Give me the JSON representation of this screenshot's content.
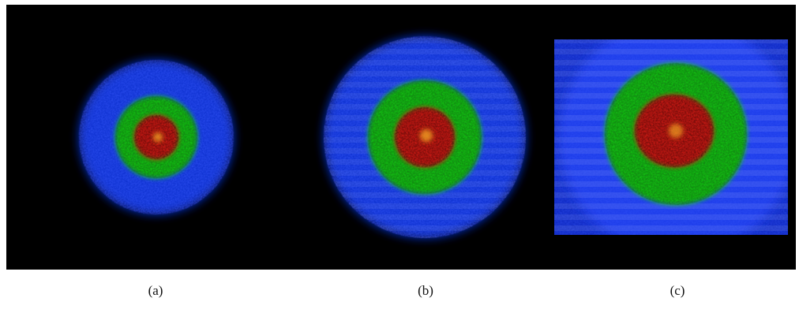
{
  "figure": {
    "background_color": "#000000",
    "ring_colors": {
      "outer": "#1030d8",
      "middle": "#18c818",
      "core": "#d81a14",
      "center_highlight": "#f0a020"
    },
    "panels": [
      {
        "id": "a",
        "caption": "(a)",
        "shape": "circular"
      },
      {
        "id": "b",
        "caption": "(b)",
        "shape": "circular"
      },
      {
        "id": "c",
        "caption": "(c)",
        "shape": "square-clipped"
      }
    ]
  }
}
